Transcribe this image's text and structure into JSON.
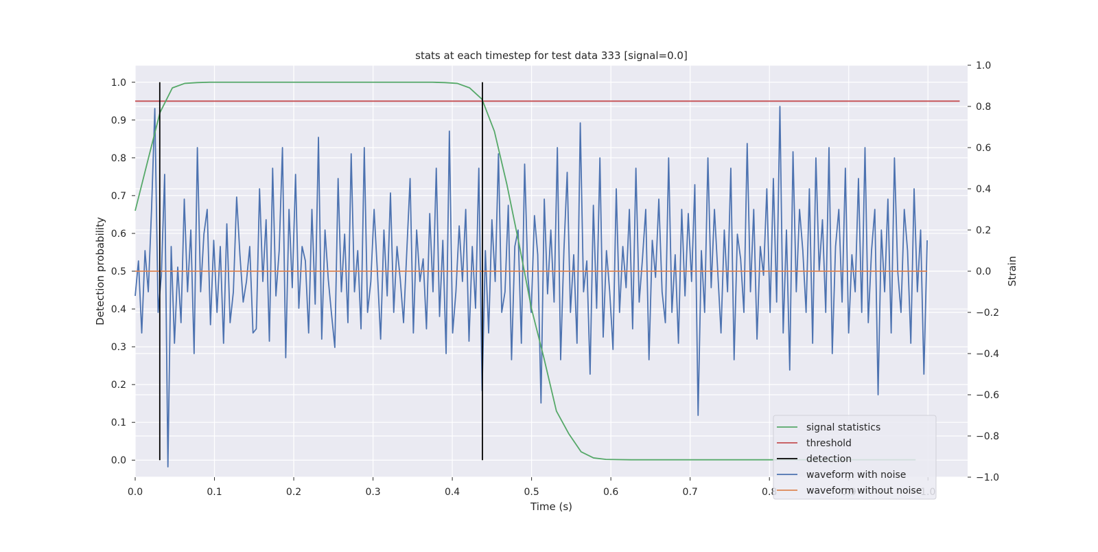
{
  "chart_data": {
    "type": "line",
    "title": "stats at each timestep for test data 333 [signal=0.0]",
    "xlabel": "Time (s)",
    "ylabel_left": "Detection probability",
    "ylabel_right": "Strain",
    "xlim": [
      0.0,
      1.05
    ],
    "ylim_left": [
      -0.045,
      1.045
    ],
    "ylim_right": [
      -1.0,
      1.0
    ],
    "xticks": [
      0.0,
      0.1,
      0.2,
      0.3,
      0.4,
      0.5,
      0.6,
      0.7,
      0.8,
      0.9,
      1.0
    ],
    "yticks_left": [
      0.0,
      0.1,
      0.2,
      0.3,
      0.4,
      0.5,
      0.6,
      0.7,
      0.8,
      0.9,
      1.0
    ],
    "yticks_right": [
      -1.0,
      -0.8,
      -0.6,
      -0.4,
      -0.2,
      0.0,
      0.2,
      0.4,
      0.6,
      0.8,
      1.0
    ],
    "grid": true,
    "legend_position": "lower-right",
    "background": "#eaeaf2",
    "series": [
      {
        "name": "signal statistics",
        "axis": "left",
        "color": "#55a868",
        "x": [
          0.0,
          0.0156,
          0.0313,
          0.0469,
          0.0625,
          0.0781,
          0.0938,
          0.1094,
          0.125,
          0.1406,
          0.1563,
          0.2,
          0.25,
          0.3,
          0.35,
          0.375,
          0.3906,
          0.4063,
          0.4219,
          0.4375,
          0.4531,
          0.4688,
          0.4844,
          0.5,
          0.5156,
          0.5313,
          0.5469,
          0.5625,
          0.5781,
          0.5938,
          0.625,
          0.7,
          0.8,
          0.9,
          0.9844
        ],
        "y": [
          0.66,
          0.79,
          0.92,
          0.985,
          0.997,
          0.999,
          1.0,
          1.0,
          1.0,
          1.0,
          1.0,
          1.0,
          1.0,
          1.0,
          1.0,
          1.0,
          0.999,
          0.997,
          0.985,
          0.955,
          0.87,
          0.73,
          0.57,
          0.4,
          0.27,
          0.13,
          0.07,
          0.022,
          0.006,
          0.002,
          0.001,
          0.001,
          0.001,
          0.001,
          0.001
        ]
      },
      {
        "name": "threshold",
        "axis": "left",
        "color": "#c44e52",
        "x": [
          0.0,
          1.04
        ],
        "y": [
          0.95,
          0.95
        ]
      },
      {
        "name": "detection",
        "axis": "left",
        "color": "#000000",
        "vlines": [
          0.031,
          0.438
        ],
        "ymin": 0.0,
        "ymax": 1.0
      },
      {
        "name": "waveform with noise",
        "axis": "right",
        "color": "#4c72b0",
        "x_start": 0.0,
        "x_end": 0.999,
        "values": [
          -0.12,
          0.05,
          -0.3,
          0.1,
          -0.1,
          0.3,
          0.79,
          -0.2,
          -0.02,
          0.47,
          -0.95,
          0.12,
          -0.35,
          0.02,
          -0.25,
          0.35,
          -0.1,
          0.2,
          -0.4,
          0.6,
          -0.1,
          0.18,
          0.3,
          -0.26,
          0.15,
          -0.2,
          0.12,
          -0.35,
          0.23,
          -0.25,
          -0.1,
          0.36,
          0.08,
          -0.15,
          -0.05,
          0.12,
          -0.3,
          -0.28,
          0.4,
          -0.05,
          0.25,
          -0.34,
          0.5,
          -0.12,
          0.1,
          0.6,
          -0.42,
          0.3,
          -0.08,
          0.47,
          -0.18,
          0.12,
          0.05,
          -0.3,
          0.3,
          -0.16,
          0.65,
          -0.33,
          0.2,
          -0.04,
          -0.21,
          -0.37,
          0.45,
          -0.1,
          0.18,
          -0.25,
          0.57,
          -0.1,
          0.1,
          -0.28,
          0.6,
          -0.2,
          -0.05,
          0.3,
          0.0,
          -0.33,
          0.2,
          -0.12,
          0.38,
          -0.2,
          0.12,
          -0.04,
          -0.25,
          0.1,
          0.45,
          -0.3,
          0.2,
          -0.05,
          0.06,
          -0.28,
          0.28,
          -0.1,
          0.5,
          -0.22,
          0.15,
          -0.4,
          0.68,
          -0.3,
          -0.1,
          0.22,
          -0.05,
          0.3,
          -0.34,
          0.12,
          -0.18,
          0.5,
          -0.58,
          0.1,
          -0.3,
          0.25,
          -0.05,
          0.57,
          -0.2,
          -0.1,
          0.32,
          -0.43,
          0.12,
          0.2,
          -0.35,
          0.52,
          -0.03,
          -0.2,
          0.27,
          0.08,
          -0.64,
          0.35,
          -0.11,
          0.2,
          -0.15,
          0.6,
          -0.43,
          0.1,
          0.48,
          -0.2,
          0.08,
          -0.35,
          0.72,
          -0.1,
          0.05,
          -0.5,
          0.32,
          -0.18,
          0.55,
          -0.32,
          0.1,
          -0.1,
          -0.38,
          0.4,
          -0.2,
          0.12,
          -0.08,
          0.3,
          -0.28,
          0.5,
          -0.15,
          0.06,
          0.3,
          -0.43,
          0.15,
          -0.03,
          0.35,
          -0.1,
          -0.25,
          0.55,
          -0.2,
          0.08,
          -0.35,
          0.3,
          -0.12,
          0.28,
          -0.05,
          0.42,
          -0.7,
          0.1,
          -0.2,
          0.55,
          -0.08,
          0.3,
          0.0,
          -0.3,
          0.2,
          -0.1,
          0.5,
          -0.43,
          0.18,
          0.06,
          -0.2,
          0.62,
          -0.1,
          0.3,
          -0.33,
          0.12,
          -0.02,
          0.4,
          -0.2,
          0.45,
          -0.15,
          0.8,
          -0.3,
          0.2,
          -0.48,
          0.58,
          -0.1,
          0.3,
          0.1,
          -0.2,
          0.4,
          -0.35,
          0.55,
          0.0,
          0.25,
          -0.2,
          0.6,
          -0.4,
          0.12,
          0.3,
          -0.15,
          0.5,
          -0.3,
          0.08,
          -0.1,
          0.45,
          -0.2,
          0.6,
          -0.25,
          0.1,
          0.3,
          -0.6,
          0.2,
          -0.1,
          0.35,
          -0.3,
          0.55,
          0.0,
          -0.2,
          0.3,
          0.1,
          -0.35,
          0.4,
          -0.1,
          0.2,
          -0.5,
          0.15
        ]
      },
      {
        "name": "waveform without noise",
        "axis": "right",
        "color": "#dd8452",
        "x": [
          0.0,
          0.999
        ],
        "y": [
          0.0,
          0.0
        ]
      }
    ]
  }
}
